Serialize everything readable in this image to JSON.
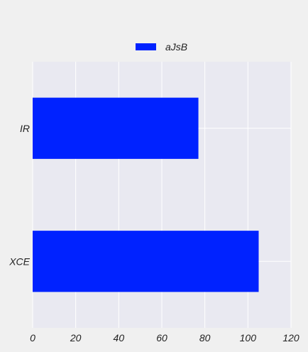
{
  "chart_data": {
    "type": "bar",
    "orientation": "horizontal",
    "categories": [
      "IR",
      "XCE"
    ],
    "series": [
      {
        "name": "aJsB",
        "values": [
          77,
          105
        ],
        "color": "#0022ff"
      }
    ],
    "xlim": [
      0,
      120
    ],
    "xticks": [
      0,
      20,
      40,
      60,
      80,
      100,
      120
    ],
    "grid": true,
    "legend_position": "top-center",
    "colors": {
      "background": "#f0f0f0",
      "plot_area": "#e9e9f1",
      "grid": "#ffffff"
    }
  }
}
